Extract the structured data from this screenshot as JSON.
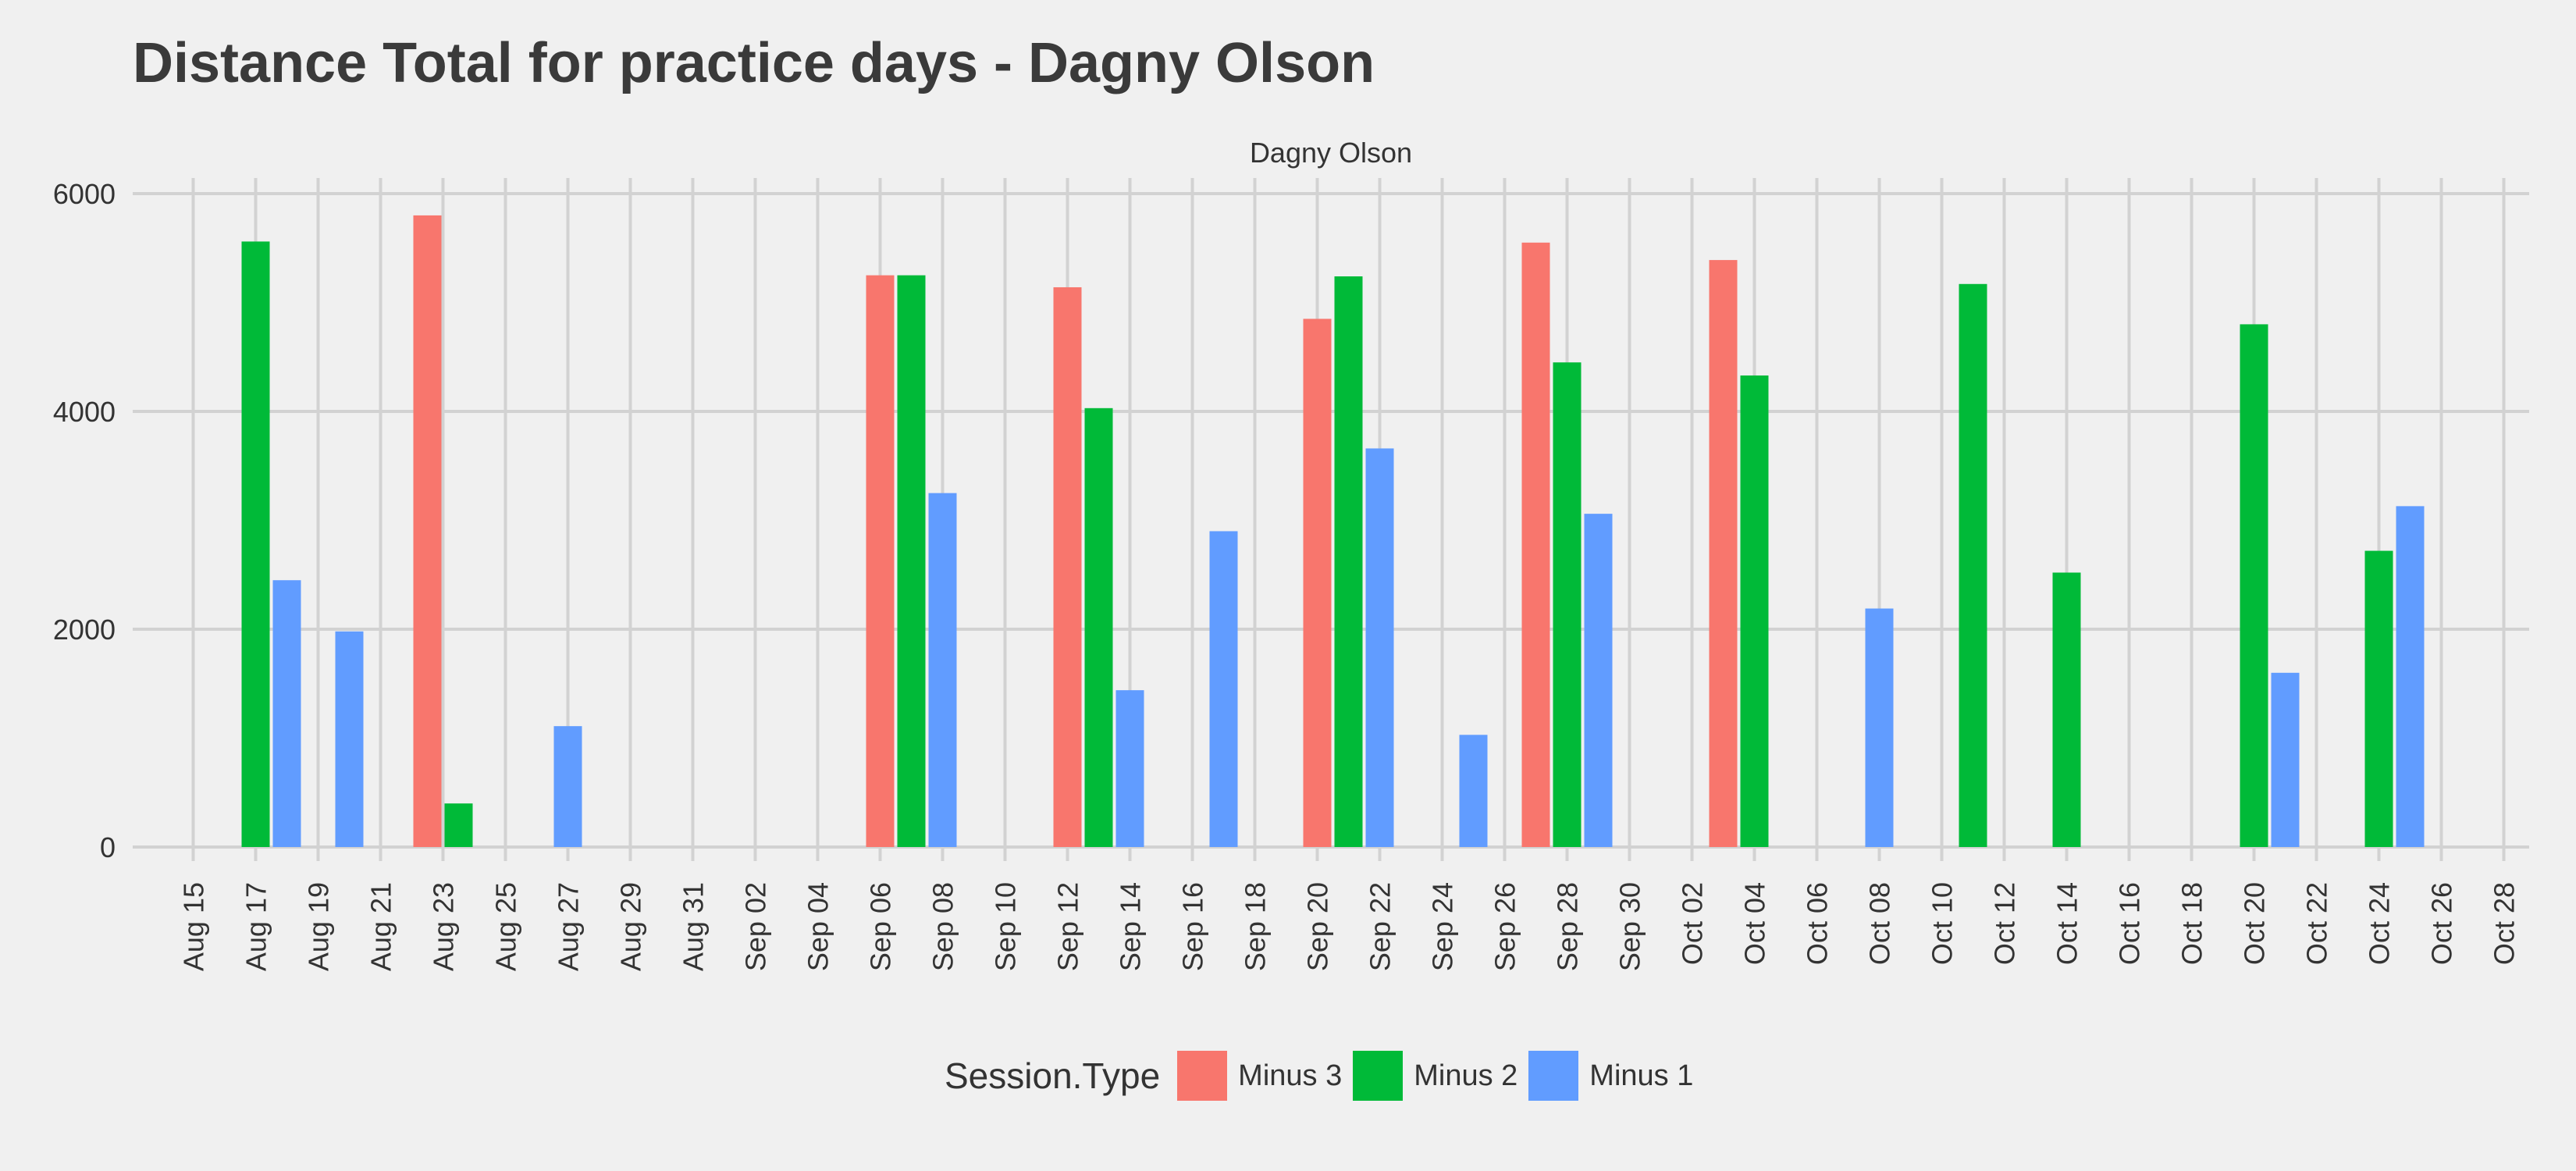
{
  "chart_data": {
    "type": "bar",
    "title": "Distance Total for practice days -  Dagny Olson",
    "facet_label": "Dagny Olson",
    "xlabel": "",
    "ylabel": "",
    "ylim": [
      -300,
      6150
    ],
    "y_ticks": [
      0,
      2000,
      4000,
      6000
    ],
    "x_ticks": [
      "Aug 15",
      "Aug 17",
      "Aug 19",
      "Aug 21",
      "Aug 23",
      "Aug 25",
      "Aug 27",
      "Aug 29",
      "Aug 31",
      "Sep 02",
      "Sep 04",
      "Sep 06",
      "Sep 08",
      "Sep 10",
      "Sep 12",
      "Sep 14",
      "Sep 16",
      "Sep 18",
      "Sep 20",
      "Sep 22",
      "Sep 24",
      "Sep 26",
      "Sep 28",
      "Sep 30",
      "Oct 02",
      "Oct 04",
      "Oct 06",
      "Oct 08",
      "Oct 10",
      "Oct 12",
      "Oct 14",
      "Oct 16",
      "Oct 18",
      "Oct 20",
      "Oct 22",
      "Oct 24",
      "Oct 26",
      "Oct 28"
    ],
    "grid": true,
    "legend_title": "Session.Type",
    "legend_position": "bottom",
    "series": [
      {
        "name": "Minus 3",
        "color": "#f8766d",
        "points": [
          {
            "x": "Aug 23",
            "y": 5800
          },
          {
            "x": "Sep 06",
            "y": 5250
          },
          {
            "x": "Sep 12",
            "y": 5140
          },
          {
            "x": "Sep 20",
            "y": 4850
          },
          {
            "x": "Sep 27",
            "y": 5550
          },
          {
            "x": "Oct 03",
            "y": 5390
          }
        ]
      },
      {
        "name": "Minus 2",
        "color": "#00ba38",
        "points": [
          {
            "x": "Aug 17",
            "y": 5560
          },
          {
            "x": "Aug 23",
            "y": 400
          },
          {
            "x": "Sep 07",
            "y": 5250
          },
          {
            "x": "Sep 13",
            "y": 4030
          },
          {
            "x": "Sep 21",
            "y": 5240
          },
          {
            "x": "Sep 28",
            "y": 4450
          },
          {
            "x": "Oct 04",
            "y": 4330
          },
          {
            "x": "Oct 11",
            "y": 5170
          },
          {
            "x": "Oct 14",
            "y": 2520
          },
          {
            "x": "Oct 20",
            "y": 4800
          },
          {
            "x": "Oct 24",
            "y": 2720
          }
        ]
      },
      {
        "name": "Minus 1",
        "color": "#619cff",
        "points": [
          {
            "x": "Aug 18",
            "y": 2450
          },
          {
            "x": "Aug 20",
            "y": 1980
          },
          {
            "x": "Aug 27",
            "y": 1110
          },
          {
            "x": "Sep 08",
            "y": 3250
          },
          {
            "x": "Sep 14",
            "y": 1440
          },
          {
            "x": "Sep 17",
            "y": 2900
          },
          {
            "x": "Sep 22",
            "y": 3660
          },
          {
            "x": "Sep 25",
            "y": 1030
          },
          {
            "x": "Sep 29",
            "y": 3060
          },
          {
            "x": "Oct 08",
            "y": 2190
          },
          {
            "x": "Oct 21",
            "y": 1600
          },
          {
            "x": "Oct 25",
            "y": 3130
          }
        ]
      }
    ]
  }
}
